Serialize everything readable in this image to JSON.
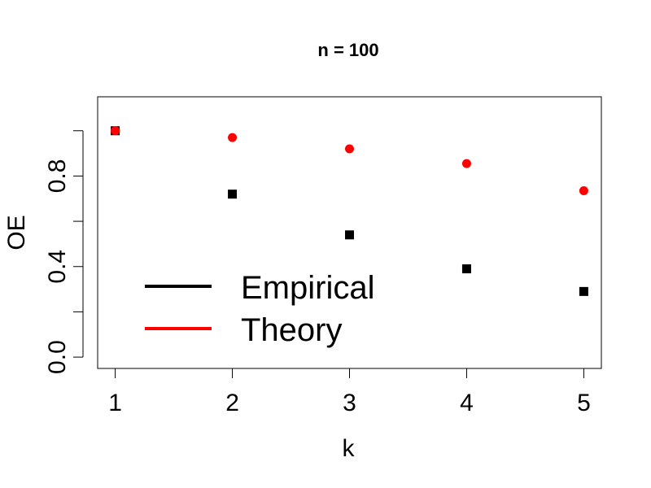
{
  "chart_data": {
    "type": "scatter",
    "title": "n =  100",
    "xlabel": "k",
    "ylabel": "OE",
    "xlim": [
      0.85,
      5.15
    ],
    "ylim": [
      -0.05,
      1.15
    ],
    "x_ticks": [
      1,
      2,
      3,
      4,
      5
    ],
    "x_tick_labels": [
      "1",
      "2",
      "3",
      "4",
      "5"
    ],
    "y_ticks": [
      0.0,
      0.2,
      0.4,
      0.6,
      0.8,
      1.0
    ],
    "y_tick_labels": [
      "0.0",
      "",
      "0.4",
      "",
      "0.8",
      ""
    ],
    "grid": false,
    "legend_position": "bottom-left",
    "legend": [
      {
        "label": "Empirical",
        "color": "#000000"
      },
      {
        "label": "Theory",
        "color": "#ff0000"
      }
    ],
    "series": [
      {
        "name": "Empirical",
        "color": "#000000",
        "marker": "square",
        "x": [
          1,
          2,
          3,
          4,
          5
        ],
        "values": [
          1.0,
          0.72,
          0.54,
          0.39,
          0.29
        ]
      },
      {
        "name": "Theory",
        "color": "#ff0000",
        "marker": "circle",
        "x": [
          1,
          2,
          3,
          4,
          5
        ],
        "values": [
          1.0,
          0.97,
          0.92,
          0.855,
          0.735
        ]
      }
    ]
  }
}
